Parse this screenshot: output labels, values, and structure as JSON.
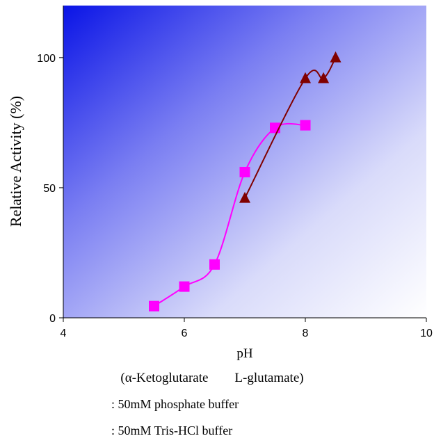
{
  "chart_data": {
    "type": "line",
    "xlabel": "pH",
    "ylabel": "Relative Activity (%)",
    "xlim": [
      4,
      10
    ],
    "ylim": [
      0,
      120
    ],
    "x_ticks": [
      "4",
      "6",
      "8",
      "10"
    ],
    "y_ticks": [
      "0",
      "50",
      "100"
    ],
    "subtitle": "(α-Ketoglutarate        L-glutamate)",
    "grid": false,
    "background": "diagonal gradient, blue to white",
    "series": [
      {
        "name": ": 50mM phosphate buffer",
        "marker": "square",
        "color": "#ff00ff",
        "smooth": true,
        "x": [
          5.5,
          6.0,
          6.5,
          7.0,
          7.5,
          8.0
        ],
        "y": [
          4.5,
          12,
          20.5,
          56,
          73,
          74
        ]
      },
      {
        "name": ": 50mM Tris-HCl buffer",
        "marker": "triangle",
        "color": "#800000",
        "smooth": true,
        "x": [
          7.0,
          8.0,
          8.3,
          8.5
        ],
        "y": [
          46,
          92,
          92,
          100
        ]
      }
    ]
  }
}
